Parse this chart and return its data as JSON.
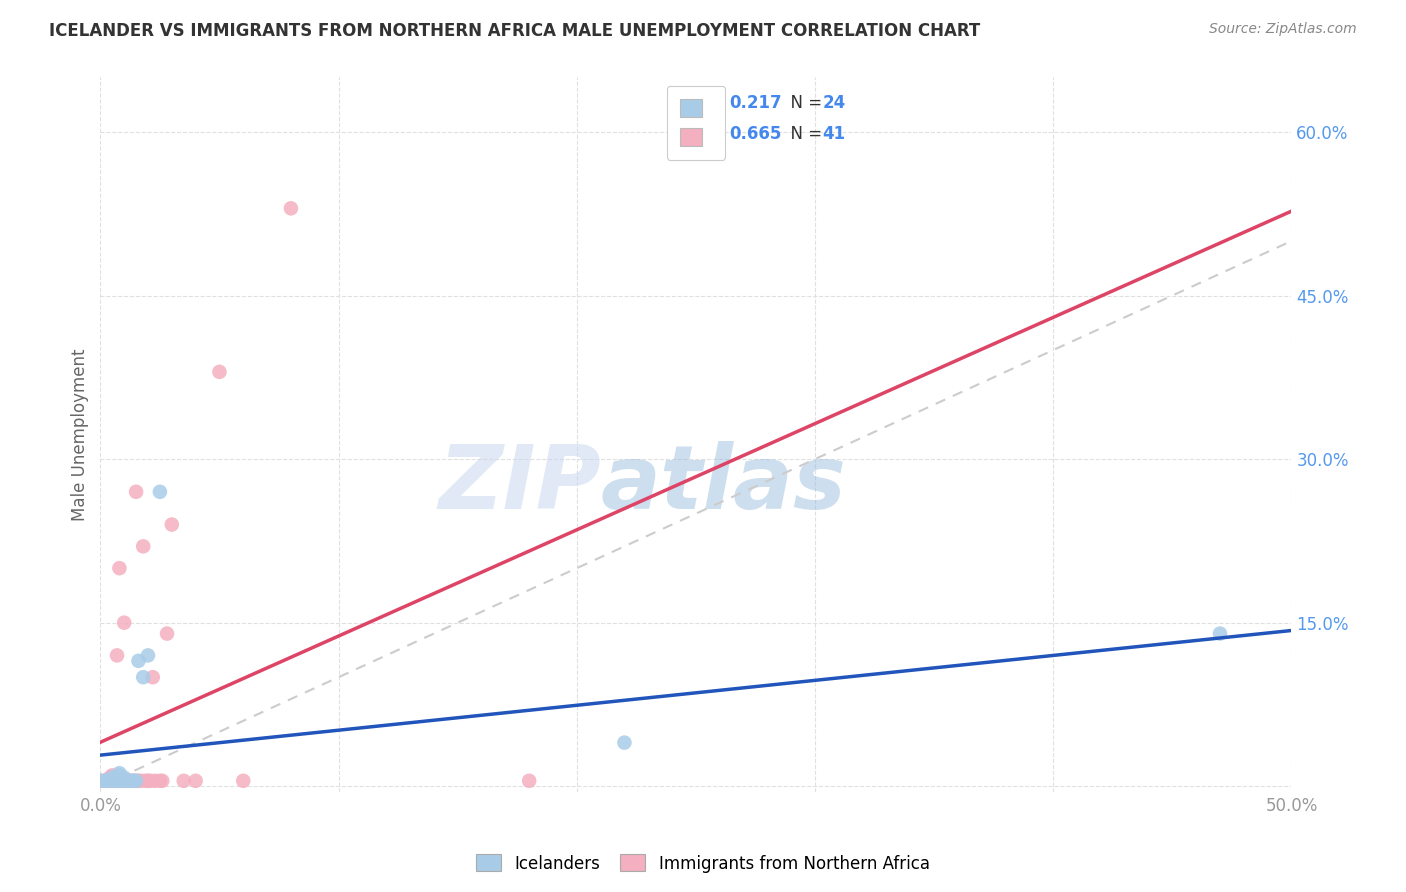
{
  "title": "ICELANDER VS IMMIGRANTS FROM NORTHERN AFRICA MALE UNEMPLOYMENT CORRELATION CHART",
  "source": "Source: ZipAtlas.com",
  "ylabel": "Male Unemployment",
  "xlim": [
    0.0,
    0.5
  ],
  "ylim": [
    -0.005,
    0.65
  ],
  "xticks": [
    0.0,
    0.1,
    0.2,
    0.3,
    0.4,
    0.5
  ],
  "yticks": [
    0.0,
    0.15,
    0.3,
    0.45,
    0.6
  ],
  "xtick_labels": [
    "0.0%",
    "",
    "",
    "",
    "",
    "50.0%"
  ],
  "ytick_labels": [
    "",
    "15.0%",
    "30.0%",
    "45.0%",
    "60.0%"
  ],
  "blue_R": 0.217,
  "blue_N": 24,
  "pink_R": 0.665,
  "pink_N": 41,
  "blue_color": "#a8cce8",
  "pink_color": "#f4afc0",
  "blue_line_color": "#2255bb",
  "pink_line_color": "#dd4466",
  "diagonal_color": "#cccccc",
  "watermark_zip": "ZIP",
  "watermark_atlas": "atlas",
  "blue_points_x": [
    0.0,
    0.002,
    0.003,
    0.004,
    0.005,
    0.005,
    0.006,
    0.007,
    0.008,
    0.008,
    0.009,
    0.01,
    0.01,
    0.011,
    0.012,
    0.013,
    0.014,
    0.015,
    0.016,
    0.018,
    0.02,
    0.025,
    0.22,
    0.47
  ],
  "blue_points_y": [
    0.005,
    0.005,
    0.005,
    0.005,
    0.005,
    0.008,
    0.005,
    0.005,
    0.01,
    0.012,
    0.005,
    0.005,
    0.008,
    0.005,
    0.005,
    0.005,
    0.005,
    0.005,
    0.115,
    0.1,
    0.12,
    0.27,
    0.04,
    0.14
  ],
  "pink_points_x": [
    0.0,
    0.001,
    0.002,
    0.003,
    0.004,
    0.004,
    0.005,
    0.005,
    0.006,
    0.006,
    0.007,
    0.007,
    0.008,
    0.008,
    0.009,
    0.01,
    0.01,
    0.011,
    0.012,
    0.013,
    0.014,
    0.015,
    0.015,
    0.016,
    0.017,
    0.018,
    0.019,
    0.02,
    0.021,
    0.022,
    0.023,
    0.025,
    0.026,
    0.028,
    0.03,
    0.035,
    0.04,
    0.05,
    0.06,
    0.08,
    0.18
  ],
  "pink_points_y": [
    0.005,
    0.005,
    0.005,
    0.005,
    0.005,
    0.008,
    0.005,
    0.01,
    0.005,
    0.008,
    0.005,
    0.12,
    0.005,
    0.2,
    0.005,
    0.005,
    0.15,
    0.005,
    0.005,
    0.005,
    0.005,
    0.005,
    0.27,
    0.005,
    0.005,
    0.22,
    0.005,
    0.005,
    0.005,
    0.1,
    0.005,
    0.005,
    0.005,
    0.14,
    0.24,
    0.005,
    0.005,
    0.38,
    0.005,
    0.53,
    0.005
  ]
}
